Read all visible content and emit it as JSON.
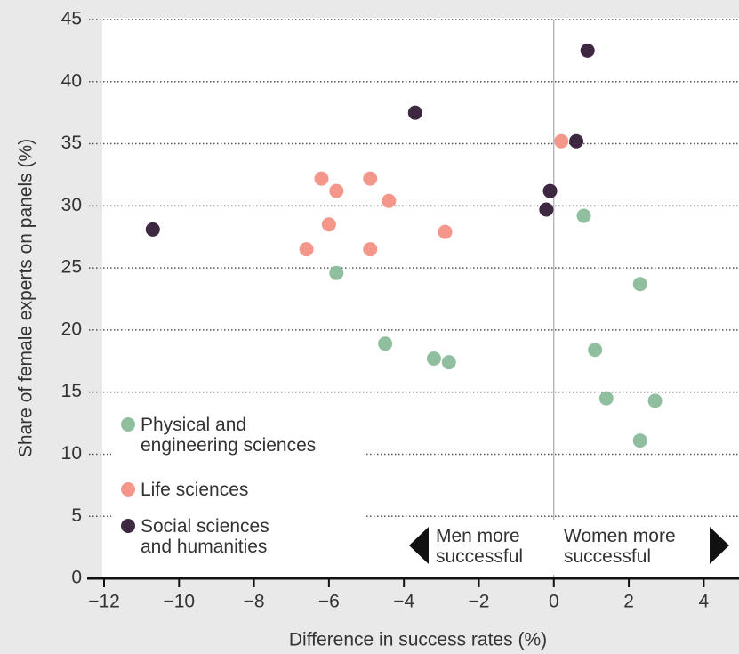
{
  "chart_data": {
    "type": "scatter",
    "xlabel": "Difference in success rates (%)",
    "ylabel": "Share of female experts on panels (%)",
    "xlim": [
      -12,
      4.94
    ],
    "ylim": [
      0,
      45
    ],
    "xticks": [
      {
        "value": -12,
        "label": "−12"
      },
      {
        "value": -10,
        "label": "−10"
      },
      {
        "value": -8,
        "label": "−8"
      },
      {
        "value": -6,
        "label": "−6"
      },
      {
        "value": -4,
        "label": "−4"
      },
      {
        "value": -2,
        "label": "−2"
      },
      0,
      2,
      4
    ],
    "yticks": [
      0,
      5,
      10,
      15,
      20,
      25,
      30,
      35,
      40,
      45
    ],
    "grid": true,
    "series": [
      {
        "name": "Physical and\nengineering sciences",
        "color": "#8fbf9f",
        "x": [
          -5.8,
          -4.5,
          -3.2,
          -2.8,
          0.8,
          2.3,
          1.1,
          1.4,
          2.7,
          2.3
        ],
        "values": [
          24.6,
          18.9,
          17.7,
          17.4,
          29.2,
          23.7,
          18.4,
          14.5,
          14.3,
          11.1
        ]
      },
      {
        "name": "Life sciences",
        "color": "#f4978a",
        "x": [
          -6.2,
          -5.8,
          -4.9,
          -4.4,
          -6.0,
          -6.6,
          -4.9,
          -2.9,
          0.2
        ],
        "values": [
          32.2,
          31.2,
          32.2,
          30.4,
          28.5,
          26.5,
          26.5,
          27.9,
          35.2
        ]
      },
      {
        "name": "Social sciences\nand humanities",
        "color": "#3d2741",
        "x": [
          -10.7,
          -3.7,
          0.9,
          0.6,
          -0.1,
          -0.2
        ],
        "values": [
          28.1,
          37.5,
          42.5,
          35.2,
          31.2,
          29.7
        ]
      }
    ],
    "annotations": [
      "Men more\nsuccessful",
      "Women more\nsuccessful"
    ]
  }
}
